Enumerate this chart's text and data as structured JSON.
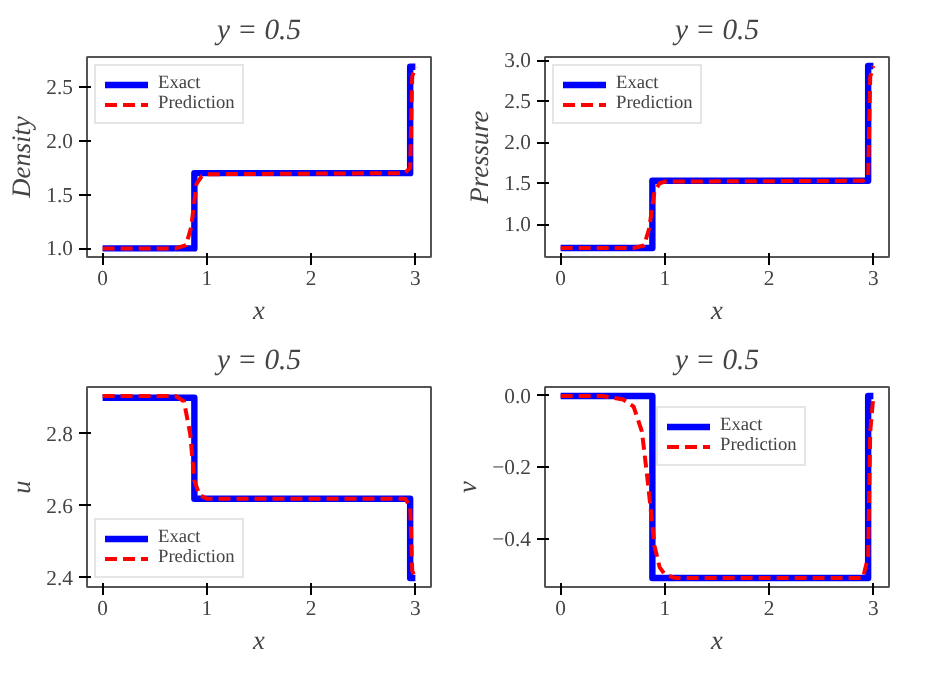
{
  "chart_data": [
    {
      "type": "line",
      "title": "y = 0.5",
      "xlabel": "x",
      "ylabel": "Density",
      "xlim": [
        -0.15,
        3.15
      ],
      "ylim": [
        0.92,
        2.78
      ],
      "xticks": [
        0,
        1,
        2,
        3
      ],
      "yticks": [
        {
          "value": 1.0,
          "label": "1.0"
        },
        {
          "value": 1.5,
          "label": "1.5"
        },
        {
          "value": 2.0,
          "label": "2.0"
        },
        {
          "value": 2.5,
          "label": "2.5"
        }
      ],
      "grid": false,
      "legend": "top left",
      "series": [
        {
          "name": "Exact",
          "color": "#0000ff",
          "line_style": "solid",
          "x": [
            0,
            0.88,
            0.88,
            2.95,
            2.95,
            3.0
          ],
          "values": [
            1.0,
            1.0,
            1.7,
            1.7,
            2.69,
            2.69
          ]
        },
        {
          "name": "Prediction",
          "color": "#ff0000",
          "line_style": "dashed",
          "x": [
            0,
            0.7,
            0.8,
            0.85,
            0.9,
            0.95,
            1.0,
            2.9,
            2.95,
            2.97,
            3.0
          ],
          "values": [
            1.0,
            1.0,
            1.03,
            1.2,
            1.6,
            1.67,
            1.69,
            1.7,
            1.75,
            2.6,
            2.69
          ]
        }
      ]
    },
    {
      "type": "line",
      "title": "y = 0.5",
      "xlabel": "x",
      "ylabel": "Pressure",
      "xlim": [
        -0.15,
        3.15
      ],
      "ylim": [
        0.6,
        3.04
      ],
      "xticks": [
        0,
        1,
        2,
        3
      ],
      "yticks": [
        {
          "value": 1.0,
          "label": "1.0"
        },
        {
          "value": 1.5,
          "label": "1.5"
        },
        {
          "value": 2.0,
          "label": "2.0"
        },
        {
          "value": 2.5,
          "label": "2.5"
        },
        {
          "value": 3.0,
          "label": "3.0"
        }
      ],
      "grid": false,
      "legend": "top left",
      "series": [
        {
          "name": "Exact",
          "color": "#0000ff",
          "line_style": "solid",
          "x": [
            0,
            0.88,
            0.88,
            2.95,
            2.95,
            3.0
          ],
          "values": [
            0.71,
            0.71,
            1.53,
            1.53,
            2.93,
            2.93
          ]
        },
        {
          "name": "Prediction",
          "color": "#ff0000",
          "line_style": "dashed",
          "x": [
            0,
            0.7,
            0.8,
            0.85,
            0.9,
            0.95,
            1.0,
            2.9,
            2.95,
            2.97,
            3.0
          ],
          "values": [
            0.71,
            0.71,
            0.74,
            0.95,
            1.4,
            1.5,
            1.52,
            1.53,
            1.6,
            2.8,
            2.93
          ]
        }
      ]
    },
    {
      "type": "line",
      "title": "y = 0.5",
      "xlabel": "x",
      "ylabel": "u",
      "xlim": [
        -0.15,
        3.15
      ],
      "ylim": [
        2.375,
        2.93
      ],
      "xticks": [
        0,
        1,
        2,
        3
      ],
      "yticks": [
        {
          "value": 2.4,
          "label": "2.4"
        },
        {
          "value": 2.6,
          "label": "2.6"
        },
        {
          "value": 2.8,
          "label": "2.8"
        }
      ],
      "grid": false,
      "legend": "bottom left",
      "series": [
        {
          "name": "Exact",
          "color": "#0000ff",
          "line_style": "solid",
          "x": [
            0,
            0.88,
            0.88,
            2.95,
            2.95,
            3.0
          ],
          "values": [
            2.9,
            2.9,
            2.62,
            2.62,
            2.4,
            2.4
          ]
        },
        {
          "name": "Prediction",
          "color": "#ff0000",
          "line_style": "dashed",
          "x": [
            0,
            0.7,
            0.78,
            0.84,
            0.88,
            0.93,
            1.0,
            2.9,
            2.95,
            2.97,
            3.0
          ],
          "values": [
            2.905,
            2.905,
            2.89,
            2.8,
            2.67,
            2.63,
            2.62,
            2.62,
            2.6,
            2.42,
            2.4
          ]
        }
      ]
    },
    {
      "type": "line",
      "title": "y = 0.5",
      "xlabel": "x",
      "ylabel": "v",
      "xlim": [
        -0.15,
        3.15
      ],
      "ylim": [
        -0.535,
        0.025
      ],
      "xticks": [
        0,
        1,
        2,
        3
      ],
      "yticks": [
        {
          "value": -0.4,
          "label": "−0.4"
        },
        {
          "value": -0.2,
          "label": "−0.2"
        },
        {
          "value": 0.0,
          "label": "0.0"
        }
      ],
      "grid": false,
      "legend": "top",
      "series": [
        {
          "name": "Exact",
          "color": "#0000ff",
          "line_style": "solid",
          "x": [
            0,
            0.88,
            0.88,
            2.95,
            2.95,
            3.0
          ],
          "values": [
            0.0,
            0.0,
            -0.51,
            -0.51,
            0.0,
            0.0
          ]
        },
        {
          "name": "Prediction",
          "color": "#ff0000",
          "line_style": "dashed",
          "x": [
            0,
            0.4,
            0.6,
            0.7,
            0.78,
            0.84,
            0.9,
            0.95,
            1.0,
            1.1,
            2.9,
            2.95,
            2.97,
            3.0
          ],
          "values": [
            0.0,
            0.0,
            -0.01,
            -0.03,
            -0.1,
            -0.25,
            -0.42,
            -0.48,
            -0.5,
            -0.51,
            -0.51,
            -0.45,
            -0.1,
            0.0
          ]
        }
      ]
    }
  ]
}
